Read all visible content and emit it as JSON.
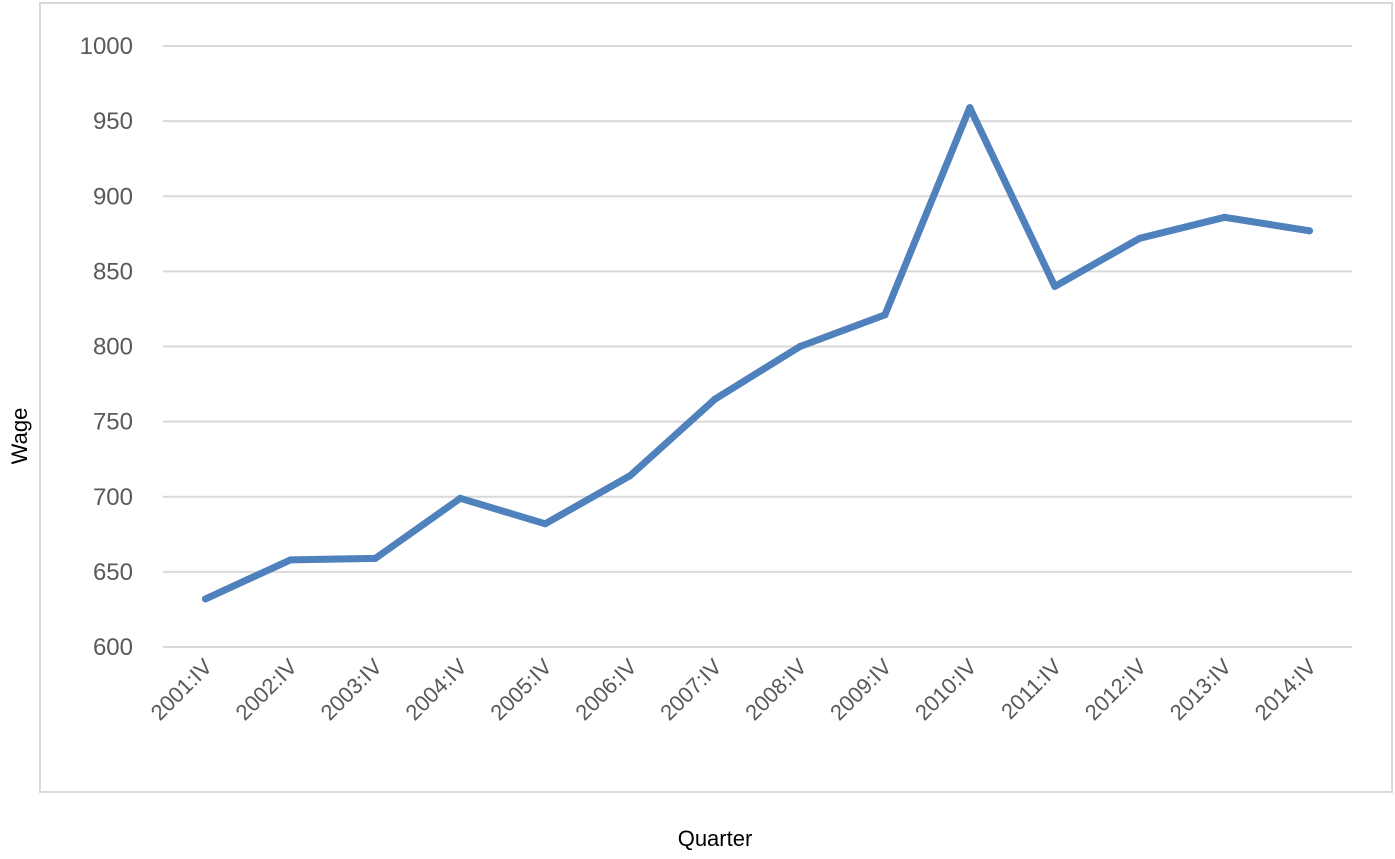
{
  "chart_data": {
    "type": "line",
    "title": "",
    "xlabel": "Quarter",
    "ylabel": "Wage",
    "ylim": [
      600,
      1000
    ],
    "yticks": [
      600,
      650,
      700,
      750,
      800,
      850,
      900,
      950,
      1000
    ],
    "grid": true,
    "legend": "none",
    "categories": [
      "2001:IV",
      "2002:IV",
      "2003:IV",
      "2004:IV",
      "2005:IV",
      "2006:IV",
      "2007:IV",
      "2008:IV",
      "2009:IV",
      "2010:IV",
      "2011:IV",
      "2012:IV",
      "2013:IV",
      "2014:IV"
    ],
    "series": [
      {
        "values": [
          632,
          658,
          659,
          699,
          682,
          714,
          765,
          800,
          821,
          959,
          840,
          872,
          886,
          877
        ],
        "color": "#4f81bd"
      }
    ]
  }
}
